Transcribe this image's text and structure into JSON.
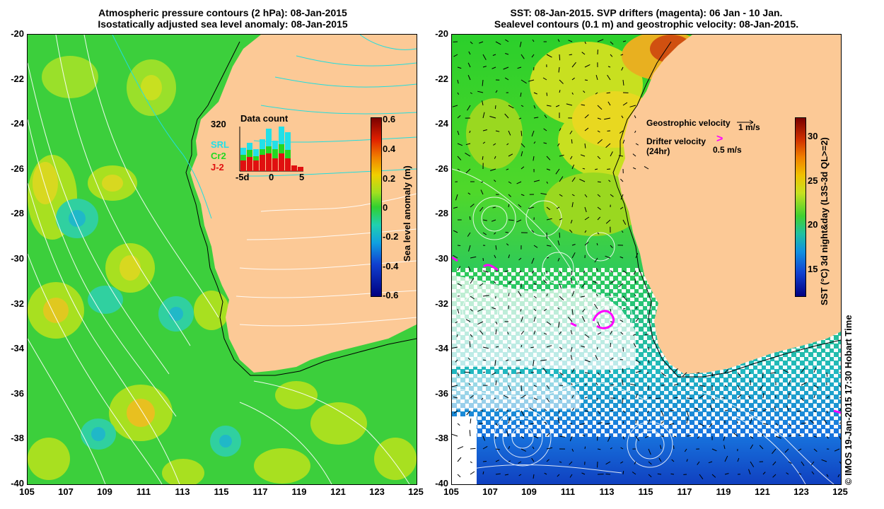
{
  "left_panel": {
    "title_line1": "Atmospheric pressure contours (2 hPa): 08-Jan-2015",
    "title_line2": "Isostatically adjusted sea level anomaly: 08-Jan-2015",
    "y_ticks": [
      "-20",
      "-22",
      "-24",
      "-26",
      "-28",
      "-30",
      "-32",
      "-34",
      "-36",
      "-38",
      "-40"
    ],
    "x_ticks": [
      "105",
      "107",
      "109",
      "111",
      "113",
      "115",
      "117",
      "119",
      "121",
      "123",
      "125"
    ],
    "colorbar": {
      "title": "Sea level anomaly (m)",
      "labels": [
        "0.6",
        "0.4",
        "0.2",
        "0",
        "-0.2",
        "-0.4",
        "-0.6"
      ],
      "range": [
        -0.6,
        0.6
      ]
    },
    "inset": {
      "title": "Data count",
      "max_label": "320",
      "series": [
        {
          "name": "SRL",
          "color": "#22e0e8"
        },
        {
          "name": "Cr2",
          "color": "#22d822"
        },
        {
          "name": "J-2",
          "color": "#e01010"
        }
      ],
      "x_labels": [
        "-5d",
        "0",
        "5"
      ]
    }
  },
  "right_panel": {
    "title_line1": "SST: 08-Jan-2015. SVP drifters (magenta): 06 Jan - 10 Jan.",
    "title_line2": "Sealevel contours (0.1 m) and geostrophic velocity: 08-Jan-2015.",
    "y_ticks": [
      "-20",
      "-22",
      "-24",
      "-26",
      "-28",
      "-30",
      "-32",
      "-34",
      "-36",
      "-38",
      "-40"
    ],
    "x_ticks": [
      "105",
      "107",
      "109",
      "111",
      "113",
      "115",
      "117",
      "119",
      "121",
      "123",
      "125"
    ],
    "legend": {
      "geo_label": "Geostrophic velocity",
      "geo_scale": "1 m/s",
      "drifter_label": "Drifter velocity",
      "drifter_sub": "(24hr)",
      "drifter_scale": "0.5 m/s"
    },
    "colorbar": {
      "title": "SST (°C) 3d night&day (L3S-3d QL>=2)",
      "labels": [
        "30",
        "25",
        "20",
        "15"
      ],
      "range": [
        12,
        32
      ]
    }
  },
  "credit": "© IMOS 19-Jan-2015 17:30 Hobart Time",
  "colors": {
    "land": "#fcc996",
    "ocean_green": "#33cc33",
    "drifter": "#ff00ff",
    "contour_white": "#ffffff",
    "contour_cyan": "#22dddd"
  }
}
